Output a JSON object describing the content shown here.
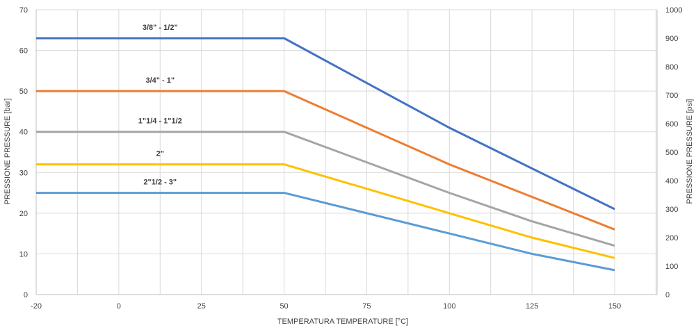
{
  "chart_data": {
    "type": "line",
    "xlabel": "TEMPERATURA  TEMPERATURE [°C]",
    "ylabel": "PRESSIONE  PRESSURE [bar]",
    "y2label": "PRESSIONE  PRESSURE [psi]",
    "x_categories": [
      "-20",
      "0",
      "25",
      "50",
      "75",
      "100",
      "125",
      "150"
    ],
    "ylim": [
      0,
      70
    ],
    "y_ticks": [
      0,
      10,
      20,
      30,
      40,
      50,
      60,
      70
    ],
    "y2lim": [
      0,
      1000
    ],
    "y2_ticks": [
      0,
      100,
      200,
      300,
      400,
      500,
      600,
      700,
      800,
      900,
      1000
    ],
    "grid": true,
    "series": [
      {
        "name": "3/8\" - 1/2\"",
        "color": "#4472c4",
        "points": [
          [
            "-20",
            63
          ],
          [
            "50",
            63
          ],
          [
            "100",
            41
          ],
          [
            "150",
            21
          ]
        ]
      },
      {
        "name": "3/4\" - 1\"",
        "color": "#ed7d31",
        "points": [
          [
            "-20",
            50
          ],
          [
            "50",
            50
          ],
          [
            "100",
            32
          ],
          [
            "125",
            24
          ],
          [
            "150",
            16
          ]
        ]
      },
      {
        "name": "1\"1/4 - 1\"1/2",
        "color": "#a5a5a5",
        "points": [
          [
            "-20",
            40
          ],
          [
            "50",
            40
          ],
          [
            "100",
            25
          ],
          [
            "125",
            18
          ],
          [
            "150",
            12
          ]
        ]
      },
      {
        "name": "2\"",
        "color": "#ffc000",
        "points": [
          [
            "-20",
            32
          ],
          [
            "50",
            32
          ],
          [
            "100",
            20
          ],
          [
            "125",
            14
          ],
          [
            "150",
            9
          ]
        ]
      },
      {
        "name": "2\"1/2 - 3\"",
        "color": "#5b9bd5",
        "points": [
          [
            "-20",
            25
          ],
          [
            "50",
            25
          ],
          [
            "100",
            15
          ],
          [
            "125",
            10
          ],
          [
            "150",
            6
          ]
        ]
      }
    ]
  }
}
